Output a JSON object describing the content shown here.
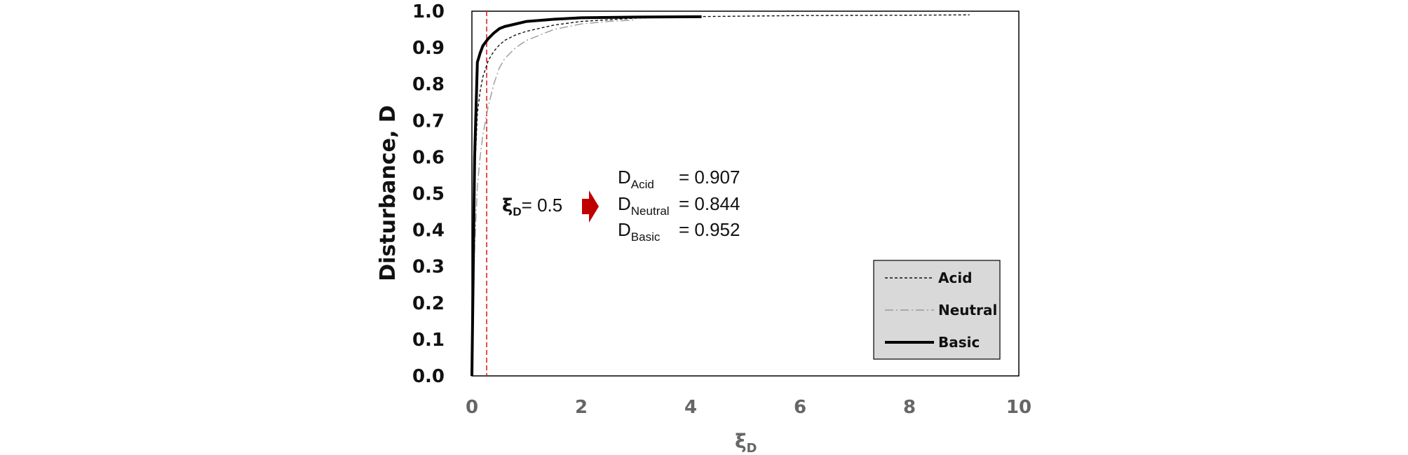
{
  "chart_data": {
    "type": "line",
    "title": "",
    "xlabel_main": "ξ",
    "xlabel_sub": "D",
    "ylabel": "Disturbance, D",
    "xlim": [
      0,
      10
    ],
    "ylim": [
      0,
      1
    ],
    "xticks": [
      "0",
      "2",
      "4",
      "6",
      "8",
      "10"
    ],
    "yticks": [
      "0.0",
      "0.1",
      "0.2",
      "0.3",
      "0.4",
      "0.5",
      "0.6",
      "0.7",
      "0.8",
      "0.9",
      "1.0"
    ],
    "grid": false,
    "legend_position": "bottom-right",
    "reference_line_x": 0.27,
    "series": [
      {
        "name": "Acid",
        "style": "dashed",
        "color": "#111111",
        "x": [
          0,
          0.05,
          0.1,
          0.15,
          0.2,
          0.3,
          0.4,
          0.5,
          0.6,
          0.8,
          1.0,
          1.5,
          2.0,
          3.0,
          4.0,
          6.0,
          8.0,
          9.1
        ],
        "y": [
          0,
          0.55,
          0.72,
          0.78,
          0.82,
          0.865,
          0.89,
          0.907,
          0.92,
          0.935,
          0.945,
          0.962,
          0.972,
          0.981,
          0.985,
          0.988,
          0.989,
          0.99
        ]
      },
      {
        "name": "Neutral",
        "style": "dashdot",
        "color": "#9a9a9a",
        "x": [
          0,
          0.05,
          0.1,
          0.15,
          0.2,
          0.3,
          0.4,
          0.5,
          0.6,
          0.8,
          1.0,
          1.5,
          2.0,
          2.5,
          3.0
        ],
        "y": [
          0,
          0.35,
          0.52,
          0.6,
          0.66,
          0.74,
          0.8,
          0.844,
          0.87,
          0.9,
          0.92,
          0.95,
          0.965,
          0.972,
          0.976
        ]
      },
      {
        "name": "Basic",
        "style": "solid",
        "color": "#000000",
        "x": [
          0,
          0.05,
          0.1,
          0.15,
          0.2,
          0.3,
          0.4,
          0.5,
          0.6,
          0.8,
          1.0,
          1.5,
          2.0,
          3.0,
          4.2
        ],
        "y": [
          0,
          0.6,
          0.86,
          0.885,
          0.905,
          0.925,
          0.94,
          0.952,
          0.958,
          0.965,
          0.972,
          0.978,
          0.982,
          0.984,
          0.985
        ]
      }
    ],
    "annotation": {
      "xi_main": "ξ",
      "xi_sub": "D",
      "xi_value": "= 0.5",
      "arrow_color": "#c00000",
      "results": [
        {
          "label": "D",
          "sub": "Acid",
          "value": "= 0.907"
        },
        {
          "label": "D",
          "sub": "Neutral",
          "value": "= 0.844"
        },
        {
          "label": "D",
          "sub": "Basic",
          "value": "= 0.952"
        }
      ]
    }
  }
}
